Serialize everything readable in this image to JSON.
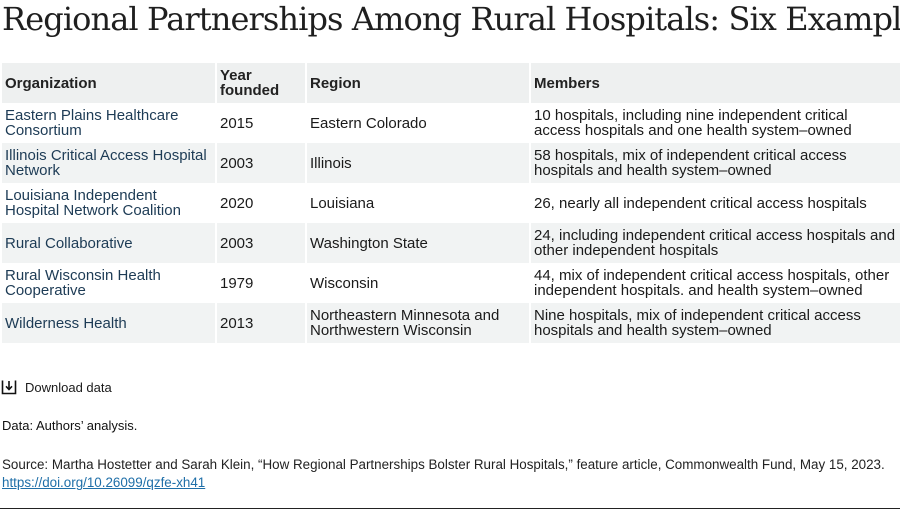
{
  "title": "Regional Partnerships Among Rural Hospitals: Six Examples",
  "download_label": "Download data",
  "note": "Data: Authors’ analysis.",
  "source_text": "Source: Martha Hostetter and Sarah Klein, “How Regional Partnerships Bolster Rural Hospitals,” feature article, Commonwealth Fund, May 15, 2023.",
  "source_link": "https://doi.org/10.26099/qzfe-xh41",
  "chart_data": {
    "type": "table",
    "columns": [
      "Organization",
      "Year founded",
      "Region",
      "Members"
    ],
    "rows": [
      [
        "Eastern Plains Healthcare Consortium",
        "2015",
        "Eastern Colorado",
        "10 hospitals, including nine independent critical access hospitals and one health system–owned"
      ],
      [
        "Illinois Critical Access Hospital Network",
        "2003",
        "Illinois",
        "58 hospitals, mix of independent critical access hospitals and health system–owned"
      ],
      [
        "Louisiana Independent Hospital Network Coalition",
        "2020",
        "Louisiana",
        "26, nearly all independent critical access hospitals"
      ],
      [
        "Rural Collaborative",
        "2003",
        "Washington State",
        "24, including independent critical access hospitals and other independent hospitals"
      ],
      [
        "Rural Wisconsin Health Cooperative",
        "1979",
        "Wisconsin",
        "44, mix of independent critical access hospitals, other independent hospitals. and health system–owned"
      ],
      [
        "Wilderness Health",
        "2013",
        "Northeastern Minnesota and Northwestern Wisconsin",
        "Nine hospitals, mix of independent critical access hospitals and health system–owned"
      ]
    ]
  }
}
